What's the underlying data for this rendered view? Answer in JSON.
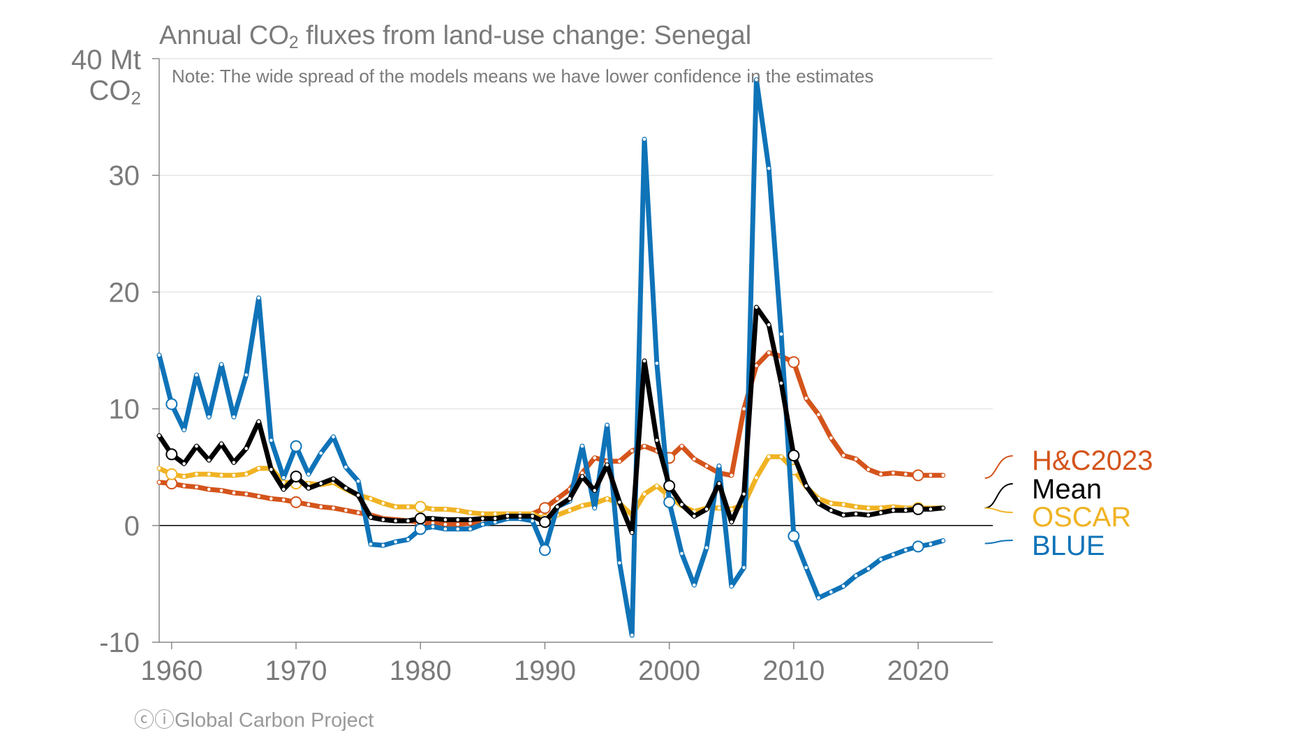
{
  "chart_data": {
    "type": "line",
    "title_prefix": "Annual CO",
    "title_sub": "2",
    "title_suffix": " fluxes from land-use change: Senegal",
    "note": "Note: The wide spread of the models means we have lower confidence in the estimates",
    "y_unit_line1": "40 Mt",
    "y_unit_line2_prefix": "CO",
    "y_unit_line2_sub": "2",
    "ylim": [
      -10,
      40
    ],
    "xlim": [
      1959,
      2026
    ],
    "x_ticks": [
      "1960",
      "1970",
      "1980",
      "1990",
      "2000",
      "2010",
      "2020"
    ],
    "y_ticks": [
      "-10",
      "0",
      "10",
      "20",
      "30"
    ],
    "footer": "Global Carbon Project",
    "x": [
      1959,
      1960,
      1961,
      1962,
      1963,
      1964,
      1965,
      1966,
      1967,
      1968,
      1969,
      1970,
      1971,
      1972,
      1973,
      1974,
      1975,
      1976,
      1977,
      1978,
      1979,
      1980,
      1981,
      1982,
      1983,
      1984,
      1985,
      1986,
      1987,
      1988,
      1989,
      1990,
      1991,
      1992,
      1993,
      1994,
      1995,
      1996,
      1997,
      1998,
      1999,
      2000,
      2001,
      2002,
      2003,
      2004,
      2005,
      2006,
      2007,
      2008,
      2009,
      2010,
      2011,
      2012,
      2013,
      2014,
      2015,
      2016,
      2017,
      2018,
      2019,
      2020,
      2021,
      2022
    ],
    "series": [
      {
        "name": "H&C2023",
        "color": "#d4541b",
        "values": [
          3.7,
          3.6,
          3.4,
          3.3,
          3.1,
          3.0,
          2.8,
          2.7,
          2.5,
          2.3,
          2.2,
          2.0,
          1.8,
          1.6,
          1.5,
          1.3,
          1.1,
          0.9,
          0.6,
          0.5,
          0.4,
          0.3,
          0.2,
          0.1,
          0.1,
          0.2,
          0.3,
          0.5,
          0.7,
          0.8,
          1.0,
          1.5,
          2.3,
          3.1,
          4.5,
          5.8,
          5.5,
          5.5,
          6.4,
          6.8,
          6.4,
          5.8,
          6.8,
          5.7,
          5.1,
          4.5,
          4.3,
          10.0,
          13.7,
          14.8,
          14.5,
          14.0,
          10.9,
          9.5,
          7.5,
          6.0,
          5.7,
          4.8,
          4.4,
          4.5,
          4.4,
          4.3,
          4.3,
          4.3
        ]
      },
      {
        "name": "Mean",
        "color": "#000000",
        "values": [
          7.7,
          6.1,
          5.3,
          6.8,
          5.6,
          7.0,
          5.4,
          6.6,
          8.9,
          4.8,
          3.1,
          4.2,
          3.2,
          3.6,
          4.0,
          3.2,
          2.6,
          0.7,
          0.5,
          0.4,
          0.4,
          0.6,
          0.6,
          0.5,
          0.5,
          0.5,
          0.6,
          0.6,
          0.8,
          0.8,
          0.8,
          0.3,
          1.6,
          2.3,
          4.2,
          3.0,
          5.2,
          2.0,
          -0.6,
          14.1,
          7.3,
          3.4,
          1.8,
          0.8,
          1.4,
          3.6,
          0.3,
          2.7,
          18.7,
          17.2,
          12.2,
          6.0,
          3.4,
          1.9,
          1.3,
          0.9,
          1.0,
          0.9,
          1.1,
          1.3,
          1.3,
          1.4,
          1.4,
          1.5
        ]
      },
      {
        "name": "OSCAR",
        "color": "#f0b323",
        "values": [
          4.9,
          4.4,
          4.2,
          4.4,
          4.4,
          4.3,
          4.3,
          4.4,
          4.9,
          4.9,
          3.7,
          3.6,
          3.6,
          3.5,
          3.7,
          3.1,
          2.6,
          2.3,
          1.9,
          1.6,
          1.6,
          1.6,
          1.4,
          1.4,
          1.3,
          1.1,
          1.0,
          1.0,
          1.0,
          1.0,
          1.0,
          0.5,
          0.9,
          1.3,
          1.7,
          1.9,
          2.3,
          1.9,
          0.9,
          2.7,
          3.4,
          2.5,
          1.7,
          1.2,
          1.5,
          1.5,
          1.4,
          1.8,
          4.1,
          5.9,
          5.9,
          4.8,
          3.3,
          2.3,
          1.9,
          1.8,
          1.6,
          1.5,
          1.5,
          1.6,
          1.5,
          1.5,
          1.5,
          1.5
        ]
      },
      {
        "name": "BLUE",
        "color": "#0f73b8",
        "values": [
          14.6,
          10.4,
          8.2,
          12.9,
          9.3,
          13.8,
          9.3,
          12.9,
          19.5,
          7.3,
          4.1,
          6.8,
          4.4,
          6.2,
          7.6,
          5.0,
          3.8,
          -1.6,
          -1.7,
          -1.4,
          -1.2,
          -0.3,
          -0.1,
          -0.3,
          -0.3,
          -0.3,
          0.1,
          0.3,
          0.6,
          0.6,
          0.4,
          -2.1,
          1.6,
          2.1,
          6.8,
          1.5,
          8.6,
          -3.2,
          -9.4,
          33.1,
          13.9,
          2.0,
          -2.4,
          -5.1,
          -1.9,
          5.1,
          -5.2,
          -3.6,
          38.2,
          30.6,
          16.4,
          -0.9,
          -3.6,
          -6.2,
          -5.7,
          -5.2,
          -4.3,
          -3.7,
          -2.9,
          -2.5,
          -2.1,
          -1.8,
          -1.6,
          -1.3
        ]
      }
    ]
  }
}
